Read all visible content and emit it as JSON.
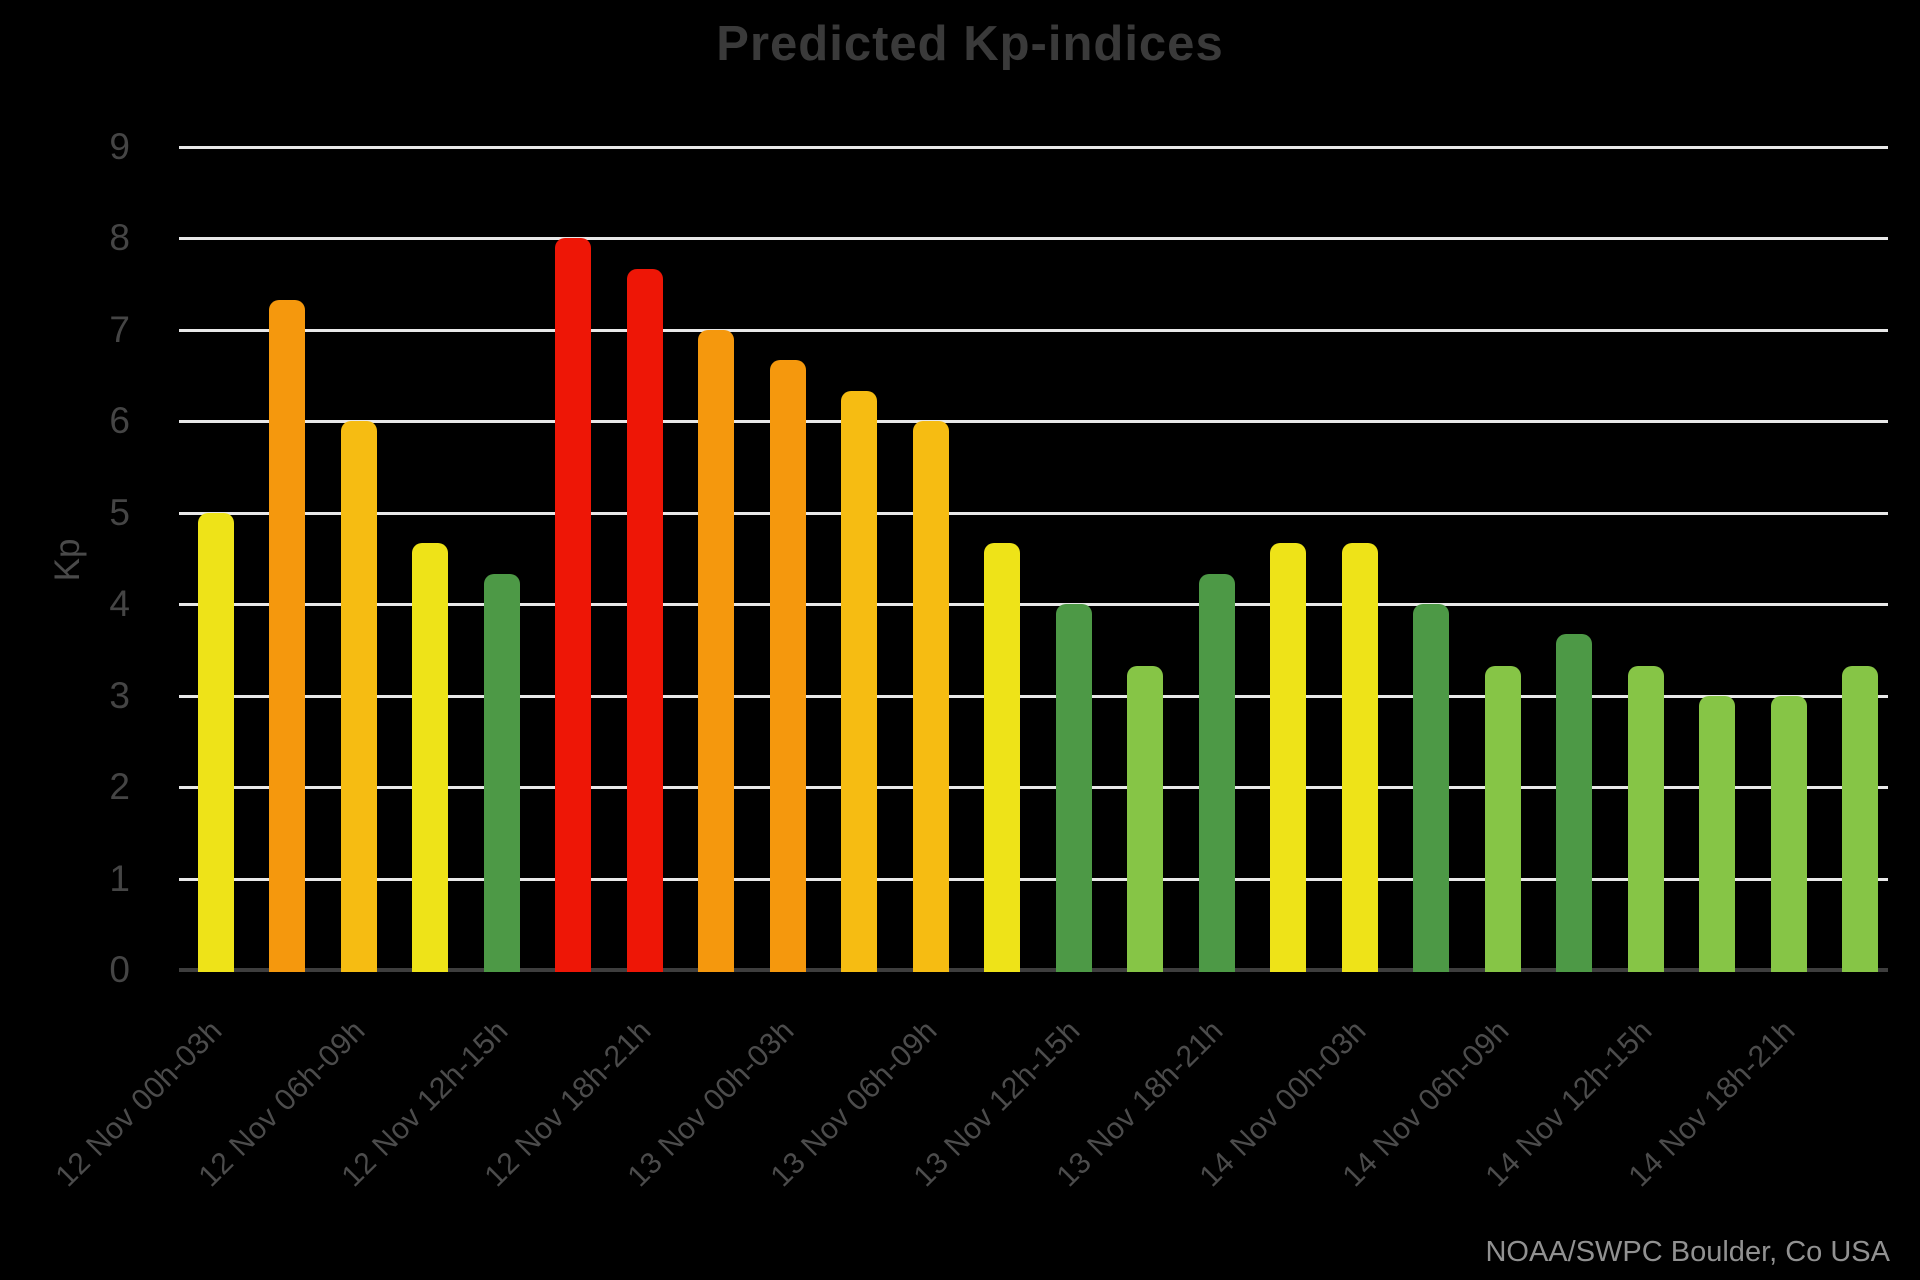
{
  "title": "Predicted Kp-indices",
  "source": "NOAA/SWPC Boulder, Co USA",
  "y_axis": {
    "label": "Kp",
    "ticks": [
      0,
      1,
      2,
      3,
      4,
      5,
      6,
      7,
      8,
      9
    ]
  },
  "colors": {
    "background": "#000000",
    "gridline": "#e8e8e8",
    "baseline": "#3e3e3e",
    "title_text": "#3a3a3a",
    "axis_text": "#4c4c4c",
    "source_text": "#919191",
    "yellow": "#eee318",
    "amber": "#f6bc12",
    "orange": "#f5980d",
    "red": "#ee1606",
    "dark_green": "#4d9946",
    "light_green": "#86c546"
  },
  "chart_data": {
    "type": "bar",
    "title": "Predicted Kp-indices",
    "xlabel": "",
    "ylabel": "Kp",
    "ylim": [
      0,
      9
    ],
    "grid": "horizontal",
    "legend": "none",
    "categories": [
      "12 Nov 00h-03h",
      "",
      "12 Nov 06h-09h",
      "",
      "12 Nov 12h-15h",
      "",
      "12 Nov 18h-21h",
      "",
      "13 Nov 00h-03h",
      "",
      "13 Nov 06h-09h",
      "",
      "13 Nov 12h-15h",
      "",
      "13 Nov 18h-21h",
      "",
      "14 Nov 00h-03h",
      "",
      "14 Nov 06h-09h",
      "",
      "14 Nov 12h-15h",
      "",
      "14 Nov 18h-21h",
      ""
    ],
    "values": [
      5,
      7.33,
      6,
      4.67,
      4.33,
      8,
      7.67,
      7,
      6.67,
      6.33,
      6,
      4.67,
      4,
      3.33,
      4.33,
      4.67,
      4.67,
      4,
      3.33,
      3.67,
      3.33,
      3,
      3,
      3.33
    ],
    "bar_colors": [
      "yellow",
      "orange",
      "amber",
      "yellow",
      "dark_green",
      "red",
      "red",
      "orange",
      "orange",
      "amber",
      "amber",
      "yellow",
      "dark_green",
      "light_green",
      "dark_green",
      "yellow",
      "yellow",
      "dark_green",
      "light_green",
      "dark_green",
      "light_green",
      "light_green",
      "light_green",
      "light_green"
    ],
    "source": "NOAA/SWPC Boulder, Co USA"
  }
}
